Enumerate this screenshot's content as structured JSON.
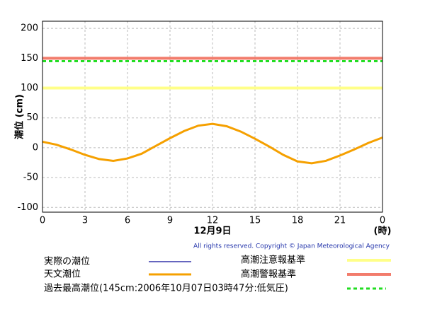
{
  "chart_data": {
    "type": "line",
    "ylabel": "潮位 (cm)",
    "xlabel": "12月9日",
    "xunit": "(時)",
    "copyright": "All rights reserved. Copyright © Japan Meteorological Agency",
    "x": [
      0,
      1,
      2,
      3,
      4,
      5,
      6,
      7,
      8,
      9,
      10,
      11,
      12,
      13,
      14,
      15,
      16,
      17,
      18,
      19,
      20,
      21,
      22,
      23,
      24
    ],
    "series": [
      {
        "name": "実際の潮位",
        "color": "#3333aa",
        "values": [
          null,
          null,
          null,
          null,
          null,
          null,
          null,
          null,
          null,
          null,
          null,
          null,
          null,
          null,
          null,
          null,
          null,
          null,
          null,
          null,
          null,
          null,
          null,
          null,
          null
        ]
      },
      {
        "name": "天文潮位",
        "color": "#f5a000",
        "values": [
          10,
          5,
          -3,
          -12,
          -19,
          -22,
          -18,
          -10,
          3,
          16,
          28,
          37,
          40,
          36,
          27,
          15,
          2,
          -12,
          -23,
          -26,
          -22,
          -13,
          -3,
          8,
          17
        ]
      }
    ],
    "reference_lines": [
      {
        "name": "高潮注意報基準",
        "color": "#ffff88",
        "value": 100
      },
      {
        "name": "高潮警報基準",
        "color": "#f27c6c",
        "value": 150
      },
      {
        "name": "過去最高潮位(145cm:2006年10月07日03時47分:低気圧)",
        "color": "#22dd22",
        "value": 145,
        "dashed": true
      }
    ],
    "xlim": [
      0,
      24
    ],
    "xticks": [
      0,
      3,
      6,
      9,
      12,
      15,
      18,
      21,
      {
        "value": 24,
        "label": "0"
      }
    ],
    "ylim": [
      -108,
      212
    ],
    "yticks": [
      -100,
      -50,
      0,
      50,
      100,
      150,
      200
    ],
    "grid": true
  }
}
